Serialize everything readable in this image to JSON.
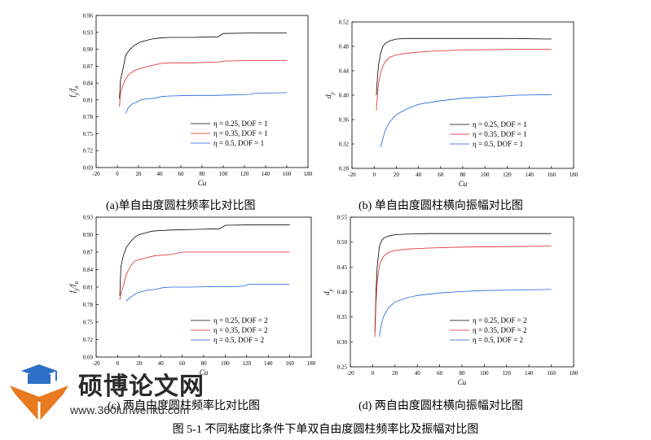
{
  "figure_caption": "图 5-1 不同粘度比条件下单双自由度圆柱频率比及振幅对比图",
  "watermark": {
    "title": "硕博论文网",
    "url": "www.360lunwenku.com"
  },
  "colors": {
    "eta_025": "#000000",
    "eta_035": "#e0242b",
    "eta_05": "#1f63d8"
  },
  "chart_data": [
    {
      "id": "a",
      "type": "line",
      "caption": "(a)单自由度圆柱频率比对比图",
      "xlabel": "Cu",
      "ylabel": "f_y/f_n",
      "xlim": [
        -20,
        180
      ],
      "ylim": [
        0.69,
        0.96
      ],
      "xticks": [
        "-20",
        "0",
        "20",
        "40",
        "60",
        "80",
        "100",
        "120",
        "140",
        "160",
        "180"
      ],
      "yticks": [
        "0.69",
        "0.72",
        "0.75",
        "0.78",
        "0.81",
        "0.84",
        "0.87",
        "0.90",
        "0.93",
        "0.96"
      ],
      "legend": "bottom-right",
      "grid": false,
      "series": [
        {
          "name": "η = 0.25, DOF = 1",
          "color": "#000000",
          "x": [
            2,
            3,
            5,
            8,
            12,
            16,
            22,
            28,
            32,
            40,
            50,
            70,
            95,
            100,
            130,
            160
          ],
          "y": [
            0.812,
            0.845,
            0.862,
            0.89,
            0.9,
            0.907,
            0.913,
            0.916,
            0.918,
            0.92,
            0.921,
            0.921,
            0.922,
            0.928,
            0.929,
            0.929
          ]
        },
        {
          "name": "η = 0.35, DOF = 1",
          "color": "#e0242b",
          "x": [
            2,
            3,
            5,
            8,
            12,
            16,
            22,
            28,
            35,
            42,
            50,
            70,
            95,
            100,
            130,
            160
          ],
          "y": [
            0.798,
            0.822,
            0.835,
            0.848,
            0.857,
            0.862,
            0.866,
            0.869,
            0.872,
            0.875,
            0.876,
            0.876,
            0.877,
            0.879,
            0.88,
            0.88
          ]
        },
        {
          "name": "η = 0.5, DOF = 1",
          "color": "#1f63d8",
          "x": [
            8,
            10,
            14,
            18,
            22,
            28,
            35,
            42,
            50,
            70,
            90,
            110,
            125,
            130,
            160
          ],
          "y": [
            0.786,
            0.795,
            0.803,
            0.806,
            0.81,
            0.812,
            0.813,
            0.816,
            0.817,
            0.818,
            0.818,
            0.819,
            0.82,
            0.822,
            0.823
          ]
        }
      ]
    },
    {
      "id": "b",
      "type": "line",
      "caption": "(b) 单自由度圆柱横向振幅对比图",
      "xlabel": "Cu",
      "ylabel": "d_y",
      "xlim": [
        -20,
        180
      ],
      "ylim": [
        0.28,
        0.52
      ],
      "xticks": [
        "-20",
        "0",
        "20",
        "40",
        "60",
        "80",
        "100",
        "120",
        "140",
        "160",
        "180"
      ],
      "yticks": [
        "0.28",
        "0.32",
        "0.36",
        "0.40",
        "0.44",
        "0.48",
        "0.52"
      ],
      "legend": "bottom-right",
      "grid": false,
      "series": [
        {
          "name": "η = 0.25, DOF = 1",
          "color": "#000000",
          "x": [
            2,
            3,
            4,
            6,
            8,
            10,
            14,
            20,
            30,
            50,
            80,
            120,
            160
          ],
          "y": [
            0.4,
            0.43,
            0.45,
            0.47,
            0.48,
            0.485,
            0.489,
            0.492,
            0.493,
            0.493,
            0.493,
            0.493,
            0.492
          ]
        },
        {
          "name": "η = 0.35, DOF = 1",
          "color": "#e0242b",
          "x": [
            2,
            3,
            4,
            6,
            8,
            10,
            14,
            20,
            30,
            50,
            80,
            120,
            160
          ],
          "y": [
            0.375,
            0.4,
            0.42,
            0.438,
            0.448,
            0.455,
            0.462,
            0.466,
            0.469,
            0.472,
            0.474,
            0.475,
            0.475
          ]
        },
        {
          "name": "η = 0.5, DOF = 1",
          "color": "#1f63d8",
          "x": [
            6,
            7,
            8,
            10,
            14,
            20,
            30,
            40,
            60,
            80,
            100,
            130,
            160
          ],
          "y": [
            0.315,
            0.322,
            0.33,
            0.342,
            0.356,
            0.368,
            0.378,
            0.385,
            0.391,
            0.395,
            0.397,
            0.4,
            0.401
          ]
        }
      ]
    },
    {
      "id": "c",
      "type": "line",
      "caption": "(c) 两自由度圆柱频率比对比图",
      "xlabel": "Cu",
      "ylabel": "f_y/f_n",
      "xlim": [
        -20,
        180
      ],
      "ylim": [
        0.69,
        0.93
      ],
      "xticks": [
        "-20",
        "0",
        "20",
        "40",
        "60",
        "80",
        "100",
        "120",
        "140",
        "160",
        "180"
      ],
      "yticks": [
        "0.69",
        "0.72",
        "0.75",
        "0.78",
        "0.81",
        "0.84",
        "0.87",
        "0.90",
        "0.93"
      ],
      "legend": "bottom-right",
      "grid": false,
      "series": [
        {
          "name": "η = 0.25, DOF = 2",
          "color": "#000000",
          "x": [
            2,
            3,
            5,
            8,
            12,
            16,
            20,
            26,
            32,
            40,
            50,
            70,
            95,
            100,
            130,
            160
          ],
          "y": [
            0.795,
            0.845,
            0.862,
            0.878,
            0.888,
            0.896,
            0.9,
            0.903,
            0.906,
            0.907,
            0.908,
            0.909,
            0.91,
            0.916,
            0.917,
            0.917
          ]
        },
        {
          "name": "η = 0.35, DOF = 2",
          "color": "#e0242b",
          "x": [
            2,
            3,
            5,
            8,
            12,
            16,
            22,
            28,
            35,
            42,
            50,
            60,
            100,
            130,
            160
          ],
          "y": [
            0.788,
            0.8,
            0.81,
            0.832,
            0.846,
            0.855,
            0.858,
            0.861,
            0.864,
            0.865,
            0.866,
            0.87,
            0.87,
            0.87,
            0.87
          ]
        },
        {
          "name": "η = 0.5, DOF = 2",
          "color": "#1f63d8",
          "x": [
            8,
            10,
            14,
            18,
            22,
            28,
            35,
            42,
            50,
            70,
            90,
            110,
            118,
            122,
            160
          ],
          "y": [
            0.786,
            0.79,
            0.795,
            0.8,
            0.802,
            0.805,
            0.806,
            0.809,
            0.81,
            0.81,
            0.811,
            0.811,
            0.812,
            0.815,
            0.815
          ]
        }
      ]
    },
    {
      "id": "d",
      "type": "line",
      "caption": "(d) 两自由度圆柱横向振幅对比图",
      "xlabel": "Cu",
      "ylabel": "d_y",
      "xlim": [
        -20,
        180
      ],
      "ylim": [
        0.25,
        0.55
      ],
      "xticks": [
        "-20",
        "0",
        "20",
        "40",
        "60",
        "80",
        "100",
        "120",
        "140",
        "160",
        "180"
      ],
      "yticks": [
        "0.25",
        "0.30",
        "0.35",
        "0.40",
        "0.45",
        "0.50",
        "0.55"
      ],
      "legend": "bottom-right",
      "grid": false,
      "series": [
        {
          "name": "η = 0.25, DOF = 2",
          "color": "#000000",
          "x": [
            2,
            3,
            4,
            6,
            8,
            10,
            14,
            20,
            30,
            50,
            80,
            120,
            160
          ],
          "y": [
            0.32,
            0.4,
            0.45,
            0.49,
            0.503,
            0.508,
            0.512,
            0.515,
            0.516,
            0.517,
            0.517,
            0.517,
            0.517
          ]
        },
        {
          "name": "η = 0.35, DOF = 2",
          "color": "#e0242b",
          "x": [
            2,
            3,
            4,
            6,
            8,
            10,
            14,
            20,
            30,
            50,
            80,
            120,
            160
          ],
          "y": [
            0.31,
            0.38,
            0.42,
            0.452,
            0.465,
            0.472,
            0.479,
            0.483,
            0.486,
            0.488,
            0.49,
            0.491,
            0.492
          ]
        },
        {
          "name": "η = 0.5, DOF = 2",
          "color": "#1f63d8",
          "x": [
            6,
            7,
            8,
            10,
            14,
            20,
            30,
            40,
            60,
            80,
            100,
            130,
            160
          ],
          "y": [
            0.31,
            0.325,
            0.338,
            0.352,
            0.368,
            0.38,
            0.388,
            0.393,
            0.398,
            0.401,
            0.403,
            0.404,
            0.405
          ]
        }
      ]
    }
  ]
}
